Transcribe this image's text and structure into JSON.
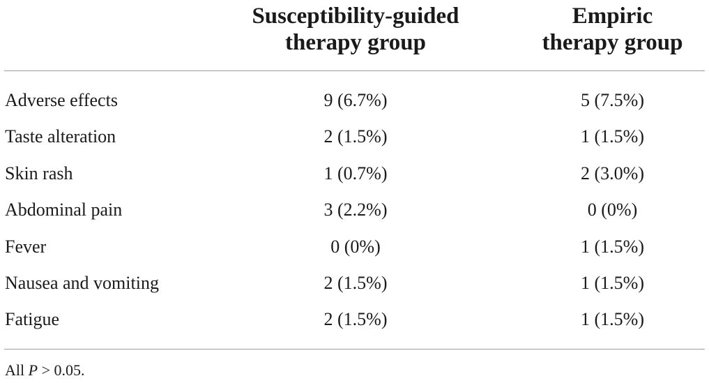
{
  "table": {
    "headers": {
      "col1_line1": "Susceptibility-guided",
      "col1_line2": "therapy group",
      "col2_line1": "Empiric",
      "col2_line2": "therapy group"
    },
    "rows": [
      {
        "label": "Adverse effects",
        "guided": "9 (6.7%)",
        "empiric": "5 (7.5%)"
      },
      {
        "label": "Taste alteration",
        "guided": "2 (1.5%)",
        "empiric": "1 (1.5%)"
      },
      {
        "label": "Skin rash",
        "guided": "1 (0.7%)",
        "empiric": "2 (3.0%)"
      },
      {
        "label": "Abdominal pain",
        "guided": "3 (2.2%)",
        "empiric": "0 (0%)"
      },
      {
        "label": "Fever",
        "guided": "0 (0%)",
        "empiric": "1 (1.5%)"
      },
      {
        "label": "Nausea and vomiting",
        "guided": "2 (1.5%)",
        "empiric": "1 (1.5%)"
      },
      {
        "label": "Fatigue",
        "guided": "2 (1.5%)",
        "empiric": "1 (1.5%)"
      }
    ],
    "footnote": {
      "prefix": "All ",
      "variable": "P",
      "suffix": " > 0.05."
    }
  }
}
